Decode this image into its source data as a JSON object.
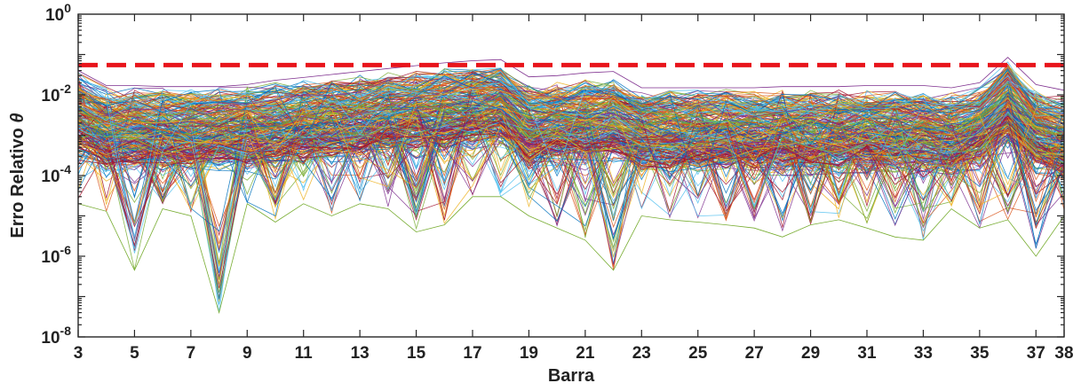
{
  "chart_data": {
    "type": "line",
    "xlabel": "Barra",
    "ylabel": "Erro Relativo θ",
    "ylabel_main": "Erro Relativo ",
    "ylabel_symbol": "θ",
    "yscale": "log",
    "xlim": [
      3,
      38
    ],
    "ylim": [
      1e-08,
      1
    ],
    "x": [
      3,
      4,
      5,
      6,
      7,
      8,
      9,
      10,
      11,
      12,
      13,
      14,
      15,
      16,
      17,
      18,
      19,
      20,
      21,
      22,
      23,
      24,
      25,
      26,
      27,
      28,
      29,
      30,
      31,
      32,
      33,
      34,
      35,
      36,
      37,
      38
    ],
    "xticks": [
      3,
      5,
      7,
      9,
      11,
      13,
      15,
      17,
      19,
      21,
      23,
      25,
      27,
      29,
      31,
      33,
      35,
      37,
      38
    ],
    "yticks": [
      {
        "value": 1e-08,
        "base": "10",
        "exp": "-8"
      },
      {
        "value": 1e-06,
        "base": "10",
        "exp": "-6"
      },
      {
        "value": 0.0001,
        "base": "10",
        "exp": "-4"
      },
      {
        "value": 0.01,
        "base": "10",
        "exp": "-2"
      },
      {
        "value": 1,
        "base": "10",
        "exp": "0"
      }
    ],
    "grid": false,
    "threshold": {
      "value": 0.055,
      "style": "dashed",
      "color": "#e8141b"
    },
    "series_count": 300,
    "series_upper_envelope": [
      0.04,
      0.017,
      0.017,
      0.016,
      0.016,
      0.016,
      0.018,
      0.023,
      0.027,
      0.032,
      0.038,
      0.045,
      0.053,
      0.062,
      0.07,
      0.075,
      0.028,
      0.03,
      0.035,
      0.038,
      0.015,
      0.015,
      0.015,
      0.015,
      0.015,
      0.016,
      0.016,
      0.016,
      0.017,
      0.017,
      0.017,
      0.015,
      0.02,
      0.085,
      0.018,
      0.013
    ],
    "series_typical_median": [
      0.003,
      0.0013,
      0.0013,
      0.0013,
      0.0013,
      0.0013,
      0.0014,
      0.0017,
      0.002,
      0.0023,
      0.0026,
      0.003,
      0.0035,
      0.004,
      0.0045,
      0.005,
      0.0015,
      0.0018,
      0.002,
      0.0022,
      0.0012,
      0.0012,
      0.0012,
      0.0012,
      0.0012,
      0.0012,
      0.0012,
      0.0012,
      0.0012,
      0.0012,
      0.0012,
      0.001,
      0.0015,
      0.006,
      0.0012,
      0.0008
    ],
    "series_lower_envelope": [
      2e-05,
      1.3e-05,
      4.5e-07,
      1.5e-05,
      1e-05,
      4e-08,
      2e-05,
      7e-06,
      2e-05,
      1e-05,
      2e-05,
      1.5e-05,
      4e-06,
      6e-06,
      3e-05,
      3e-05,
      1e-05,
      5e-06,
      2.5e-06,
      4.5e-07,
      1e-05,
      8e-06,
      7e-06,
      6e-06,
      5e-06,
      3e-06,
      6e-06,
      8e-06,
      5e-06,
      3e-06,
      2.5e-06,
      1.5e-05,
      5e-06,
      8e-06,
      1e-06,
      1e-05
    ],
    "colors": [
      "#0072BD",
      "#D95319",
      "#EDB120",
      "#7E2F8E",
      "#77AC30",
      "#4DBEEE",
      "#A2142F"
    ]
  }
}
